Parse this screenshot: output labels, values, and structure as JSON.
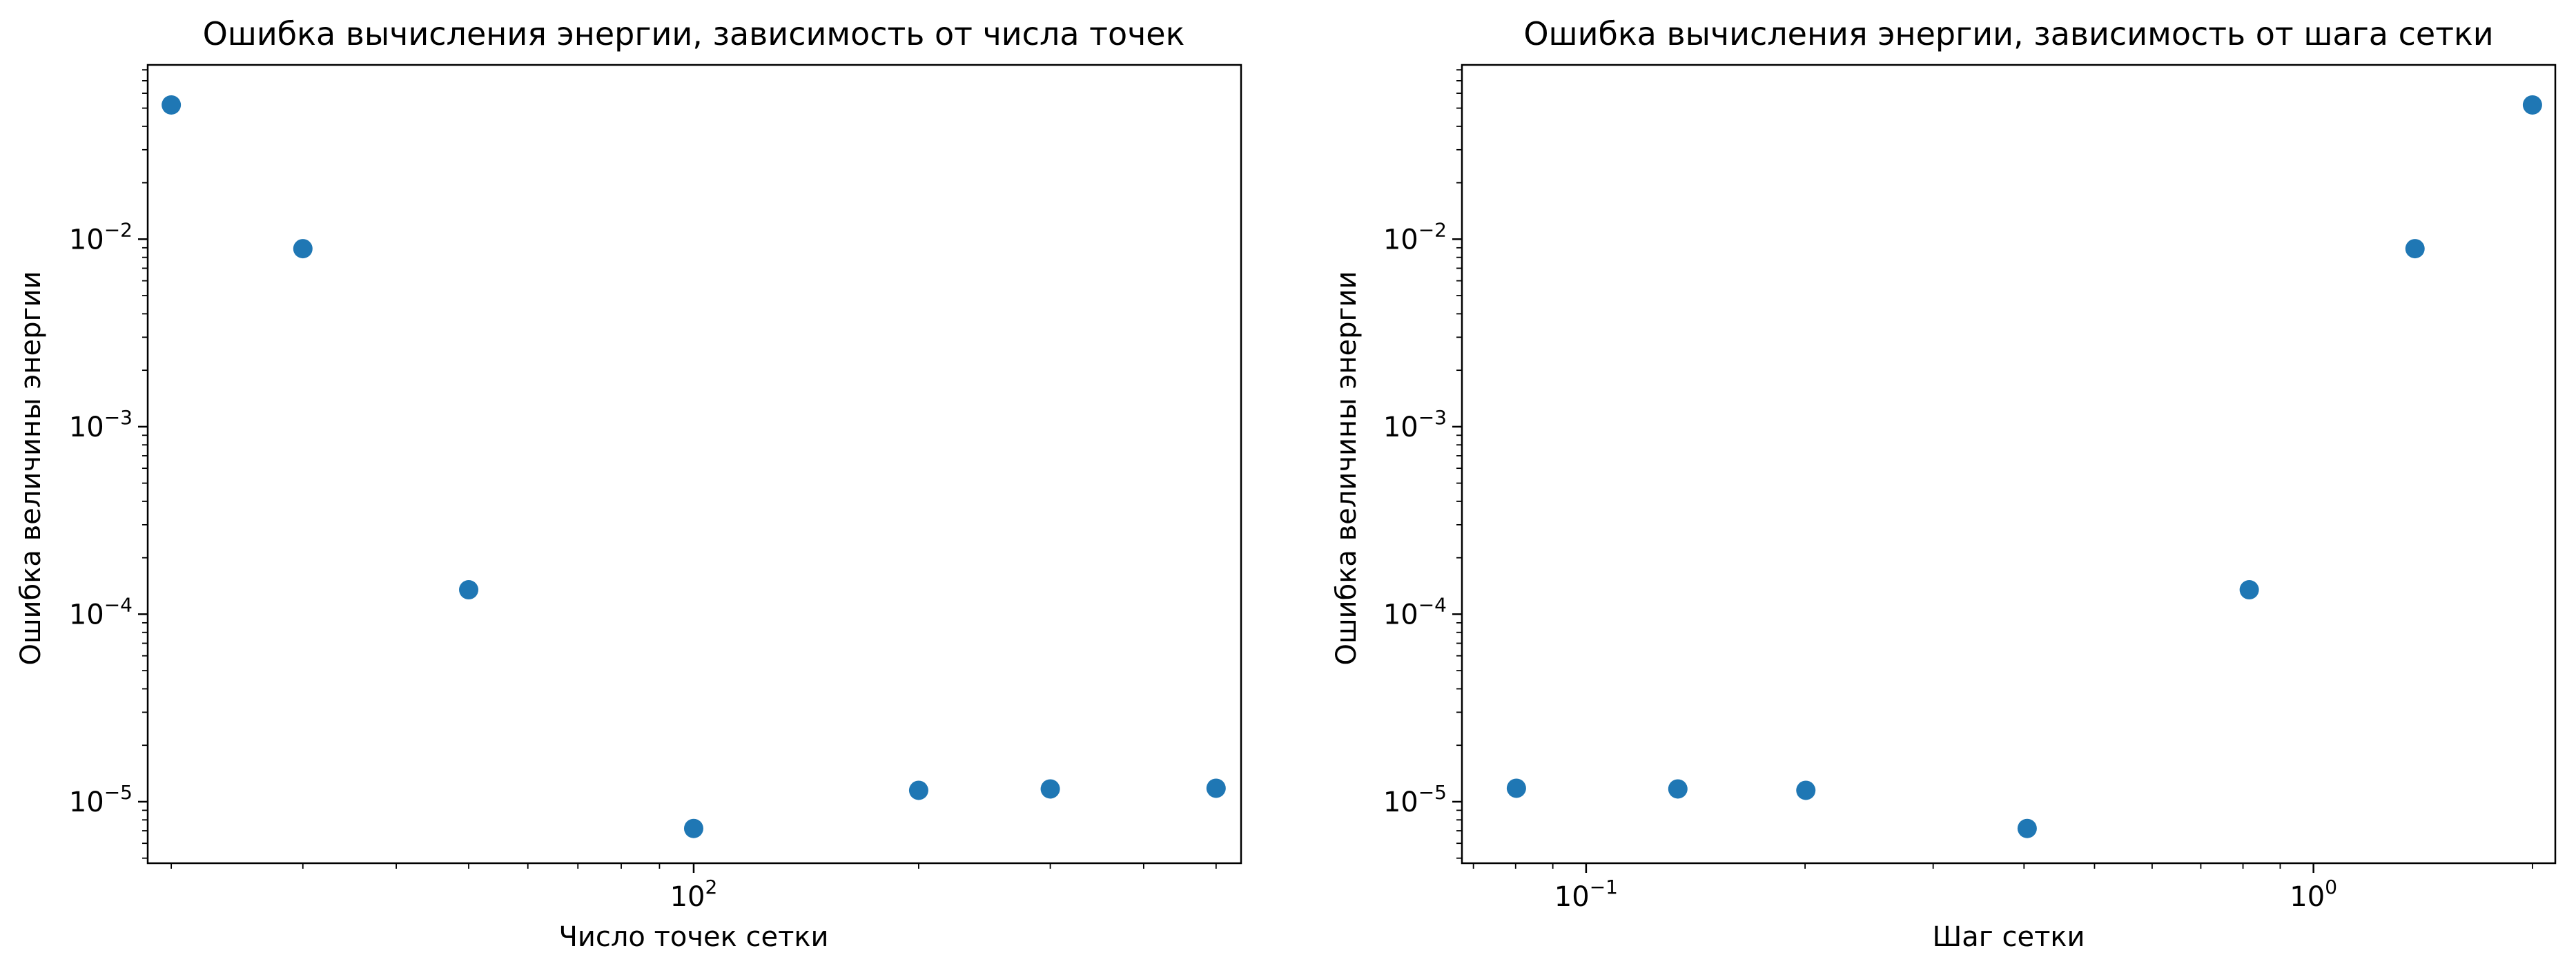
{
  "chart_data": [
    {
      "type": "scatter",
      "title": "Ошибка вычисления энергии, зависимость от числа точек",
      "xlabel": "Число точек сетки",
      "ylabel": "Ошибка величины энергии",
      "xscale": "log",
      "yscale": "log",
      "xlim": [
        18.6,
        540
      ],
      "ylim": [
        4.7e-06,
        0.085
      ],
      "x_ticks": [
        {
          "base": "10",
          "exp": "2",
          "value": 100
        }
      ],
      "y_ticks": [
        {
          "base": "10",
          "exp": "−5",
          "value": 1e-05
        },
        {
          "base": "10",
          "exp": "−4",
          "value": 0.0001
        },
        {
          "base": "10",
          "exp": "−3",
          "value": 0.001
        },
        {
          "base": "10",
          "exp": "−2",
          "value": 0.01
        }
      ],
      "grid": false,
      "color": "#1f77b4",
      "points": [
        {
          "x": 20,
          "y": 0.052
        },
        {
          "x": 30,
          "y": 0.0089
        },
        {
          "x": 50,
          "y": 0.000135
        },
        {
          "x": 100,
          "y": 7.2e-06
        },
        {
          "x": 200,
          "y": 1.15e-05
        },
        {
          "x": 300,
          "y": 1.17e-05
        },
        {
          "x": 500,
          "y": 1.18e-05
        }
      ]
    },
    {
      "type": "scatter",
      "title": "Ошибка вычисления энергии, зависимость от шага сетки",
      "xlabel": "Шаг сетки",
      "ylabel": "Ошибка величины энергии",
      "xscale": "log",
      "yscale": "log",
      "xlim": [
        0.0675,
        2.15
      ],
      "ylim": [
        4.7e-06,
        0.085
      ],
      "x_ticks": [
        {
          "base": "10",
          "exp": "−1",
          "value": 0.1
        },
        {
          "base": "10",
          "exp": "0",
          "value": 1
        }
      ],
      "y_ticks": [
        {
          "base": "10",
          "exp": "−5",
          "value": 1e-05
        },
        {
          "base": "10",
          "exp": "−4",
          "value": 0.0001
        },
        {
          "base": "10",
          "exp": "−3",
          "value": 0.001
        },
        {
          "base": "10",
          "exp": "−2",
          "value": 0.01
        }
      ],
      "grid": false,
      "color": "#1f77b4",
      "points": [
        {
          "x": 0.0802,
          "y": 1.18e-05
        },
        {
          "x": 0.1337,
          "y": 1.17e-05
        },
        {
          "x": 0.2005,
          "y": 1.15e-05
        },
        {
          "x": 0.404,
          "y": 7.2e-06
        },
        {
          "x": 0.816,
          "y": 0.000135
        },
        {
          "x": 1.379,
          "y": 0.0089
        },
        {
          "x": 2.0,
          "y": 0.052
        }
      ]
    }
  ]
}
